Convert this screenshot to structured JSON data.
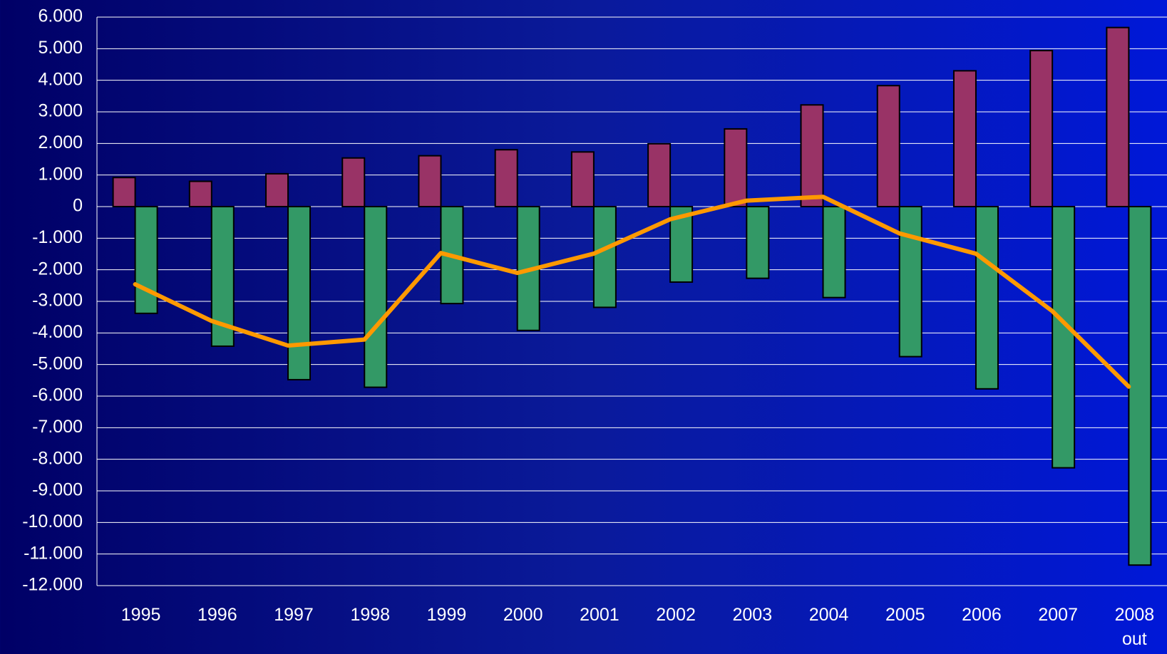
{
  "chart_data": {
    "type": "bar-line",
    "categories": [
      "1995",
      "1996",
      "1997",
      "1998",
      "1999",
      "2000",
      "2001",
      "2002",
      "2003",
      "2004",
      "2005",
      "2006",
      "2007",
      "2008\nout"
    ],
    "series": [
      {
        "type": "bar",
        "color": "#993366",
        "values": [
          920,
          800,
          1040,
          1540,
          1610,
          1800,
          1730,
          1990,
          2460,
          3220,
          3830,
          4300,
          4940,
          5670
        ]
      },
      {
        "type": "bar",
        "color": "#339966",
        "values": [
          -3380,
          -4420,
          -5480,
          -5720,
          -3070,
          -3920,
          -3190,
          -2390,
          -2270,
          -2880,
          -4750,
          -5770,
          -8270,
          -11350
        ]
      },
      {
        "type": "line",
        "color": "#ff9900",
        "values": [
          -2460,
          -3620,
          -4400,
          -4210,
          -1470,
          -2100,
          -1490,
          -400,
          190,
          310,
          -850,
          -1490,
          -3310,
          -5700
        ]
      }
    ],
    "ylim": [
      -12000,
      6000
    ],
    "yticks": [
      {
        "value": 6000,
        "label": "6.000"
      },
      {
        "value": 5000,
        "label": "5.000"
      },
      {
        "value": 4000,
        "label": "4.000"
      },
      {
        "value": 3000,
        "label": "3.000"
      },
      {
        "value": 2000,
        "label": "2.000"
      },
      {
        "value": 1000,
        "label": "1.000"
      },
      0,
      {
        "value": -1000,
        "label": "-1.000"
      },
      {
        "value": -2000,
        "label": "-2.000"
      },
      {
        "value": -3000,
        "label": "-3.000"
      },
      {
        "value": -4000,
        "label": "-4.000"
      },
      {
        "value": -5000,
        "label": "-5.000"
      },
      {
        "value": -6000,
        "label": "-6.000"
      },
      {
        "value": -7000,
        "label": "-7.000"
      },
      {
        "value": -8000,
        "label": "-8.000"
      },
      {
        "value": -9000,
        "label": "-9.000"
      },
      {
        "value": -10000,
        "label": "-10.000"
      },
      {
        "value": -11000,
        "label": "-11.000"
      },
      {
        "value": -12000,
        "label": "-12.000"
      }
    ],
    "grid": true
  }
}
